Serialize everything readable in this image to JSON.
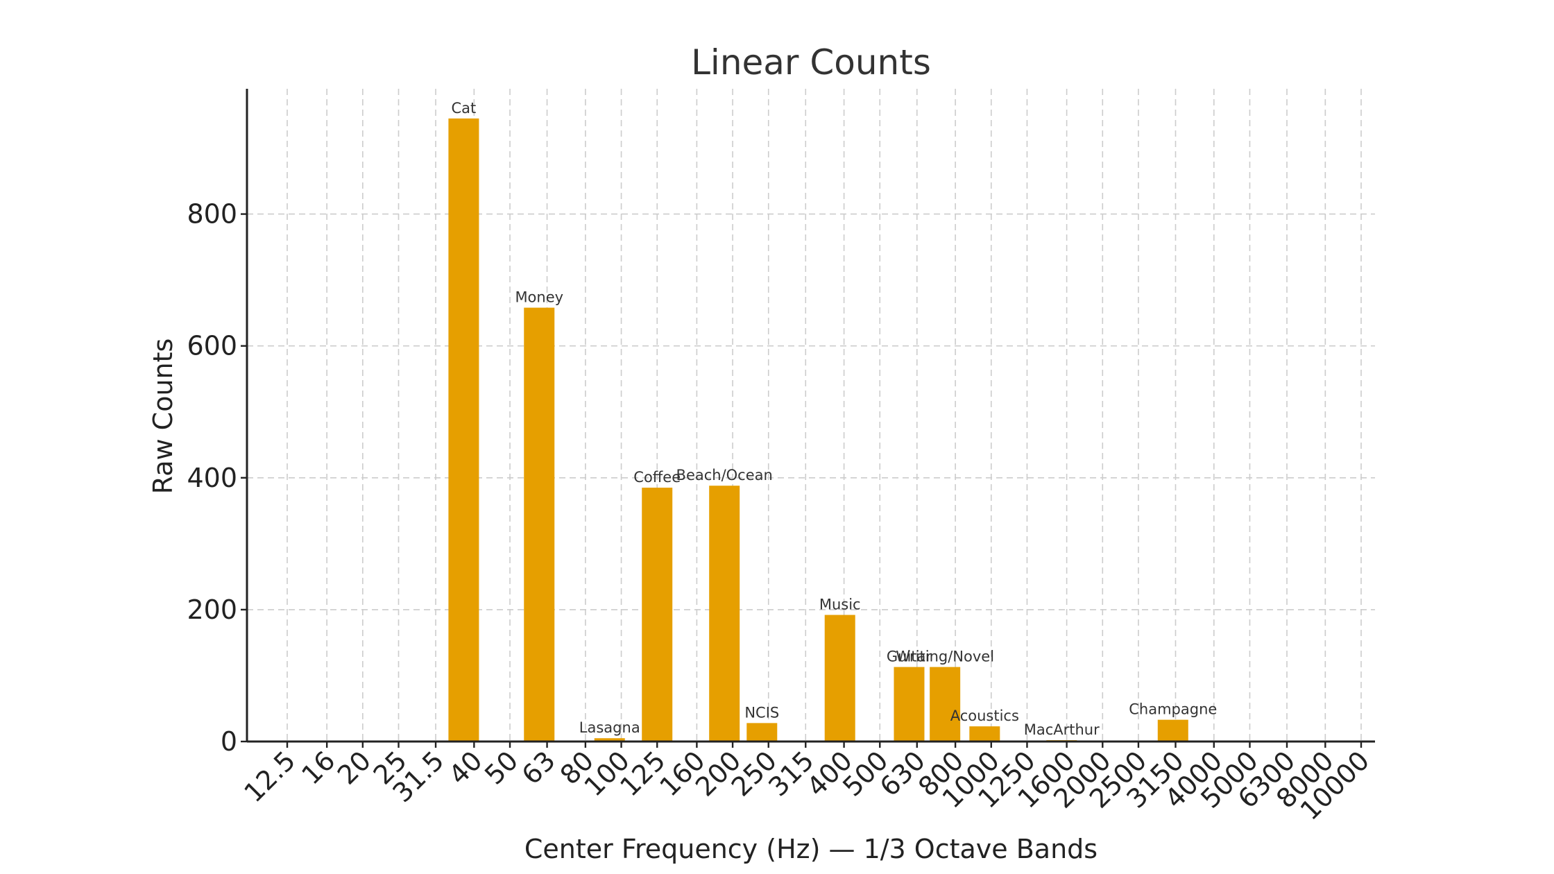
{
  "chart_data": {
    "type": "bar",
    "title": "Linear Counts",
    "xlabel": "Center Frequency (Hz) — 1/3 Octave Bands",
    "ylabel": "Raw Counts",
    "categories": [
      "12.5",
      "16",
      "20",
      "25",
      "31.5",
      "40",
      "50",
      "63",
      "80",
      "100",
      "125",
      "160",
      "200",
      "250",
      "315",
      "400",
      "500",
      "630",
      "800",
      "1000",
      "1250",
      "1600",
      "2000",
      "2500",
      "3150",
      "4000",
      "5000",
      "6300",
      "8000",
      "10000"
    ],
    "ylim": [
      0,
      990
    ],
    "yticks": [
      0,
      200,
      400,
      600,
      800
    ],
    "grid": true,
    "bar_color": "#E69F00",
    "bars": [
      {
        "label": "Cat",
        "x": 37.5,
        "value": 945
      },
      {
        "label": "Money",
        "x": 60,
        "value": 658
      },
      {
        "label": "Lasagna",
        "x": 93,
        "value": 5
      },
      {
        "label": "Coffee",
        "x": 125,
        "value": 385
      },
      {
        "label": "Beach/Ocean",
        "x": 190,
        "value": 388
      },
      {
        "label": "NCIS",
        "x": 240,
        "value": 28
      },
      {
        "label": "Music",
        "x": 390,
        "value": 192
      },
      {
        "label": "Guitar",
        "x": 600,
        "value": 113
      },
      {
        "label": "Writing/Novel",
        "x": 750,
        "value": 113
      },
      {
        "label": "Acoustics",
        "x": 960,
        "value": 23
      },
      {
        "label": "MacArthur",
        "x": 1550,
        "value": 2
      },
      {
        "label": "Champagne",
        "x": 3100,
        "value": 33
      }
    ]
  }
}
